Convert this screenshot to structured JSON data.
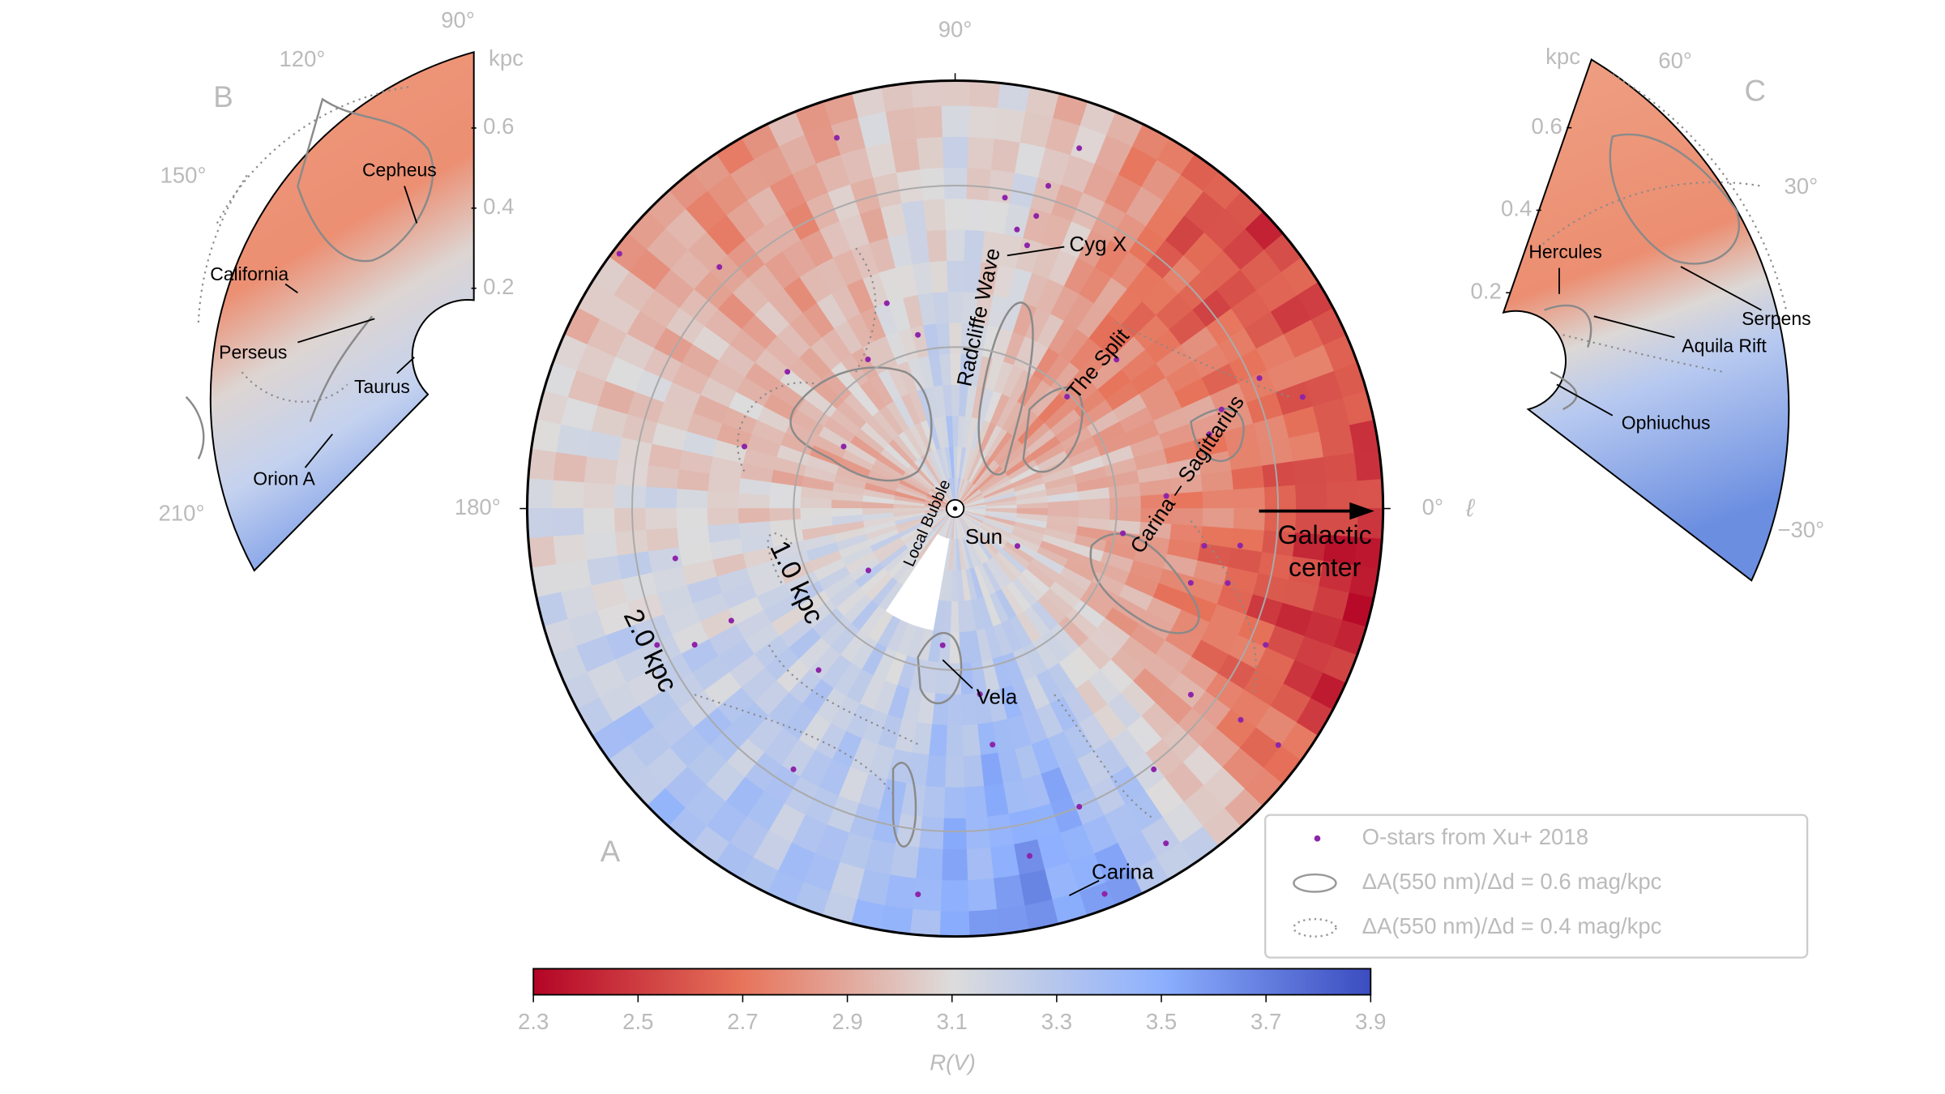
{
  "chart_data": {
    "type": "polar_scatter",
    "panel_label": "A",
    "theta_label": "ℓ",
    "thetaticks": [
      {
        "value": 90,
        "label": "90°"
      },
      {
        "value": 180,
        "label": "180°"
      },
      {
        "value": 0,
        "label": "0°"
      }
    ],
    "rlim": [
      0,
      2.65
    ],
    "rticks": [
      {
        "value": 1,
        "label": "1.0 kpc"
      },
      {
        "value": 2,
        "label": "2.0 kpc"
      }
    ],
    "legend": "lower right",
    "series": [
      {
        "name": "O-stars from Xu+ 2018",
        "color": "#8e24aa",
        "x": [
          77.5,
          80.9,
          74.5,
          73.9,
          74.7,
          107.7,
          134.3,
          120.3,
          102.1,
          140.8,
          163.6,
          190.1,
          206.6,
          207.6,
          229.8,
          215.5,
          264.8,
          279.0,
          264.5,
          282.1,
          292.6,
          307.3,
          302.2,
          291.2,
          323.5,
          336.3,
          344.7,
          342.5,
          352.6,
          16.3,
          23.2,
          17.8,
          3.4,
          351.6,
          329.0,
          45.0,
          71.0,
          108.4,
          142.8,
          204.6,
          323.8,
          321.7,
          238.2,
          277.6,
          351.5,
          20.4,
          150.9,
          42.7
        ],
        "values": [
          1.77,
          1.95,
          1.88,
          2.08,
          1.69,
          2.41,
          2.09,
          1.07,
          1.1,
          1.34,
          1.36,
          1.76,
          1.55,
          1.82,
          1.31,
          0.66,
          0.85,
          1.48,
          2.4,
          2.2,
          2.0,
          2.03,
          2.45,
          2.56,
          2.2,
          2.1,
          1.75,
          1.53,
          1.78,
          1.64,
          2.05,
          2.26,
          1.31,
          1.05,
          0.45,
          0.98,
          2.36,
          1.34,
          2.61,
          2.03,
          2.48,
          1.86,
          1.9,
          1.16,
          1.56,
          1.76,
          0.79,
          1.36
        ]
      }
    ],
    "contours": [
      {
        "name": "ΔA(550 nm)/Δd = 0.6 mag/kpc",
        "style": "solid"
      },
      {
        "name": "ΔA(550 nm)/Δd = 0.4 mag/kpc",
        "style": "dotted"
      }
    ],
    "annotations": {
      "cyg_x": "Cyg X",
      "radcliffe": "Radcliffe Wave",
      "split": "The Split",
      "carina_sgr": "Carina – Sagittarius",
      "local_bubble": "Local Bubble",
      "sun": "Sun",
      "galactic_center": [
        "Galactic",
        "center"
      ],
      "vela": "Vela",
      "carina": "Carina"
    },
    "colorbar": {
      "label": "R(V)",
      "lim": [
        2.3,
        3.9
      ],
      "ticks": [
        2.3,
        2.5,
        2.7,
        2.9,
        3.1,
        3.3,
        3.5,
        3.7,
        3.9
      ],
      "colormap": "coolwarm_r"
    },
    "insets": [
      {
        "panel_label": "B",
        "r_label": "kpc",
        "rticks": [
          0.2,
          0.4,
          0.6
        ],
        "thetaticks": [
          {
            "value": 90,
            "label": "90°"
          },
          {
            "value": 120,
            "label": "120°"
          },
          {
            "value": 150,
            "label": "150°"
          },
          {
            "value": 210,
            "label": "210°"
          }
        ],
        "annotations": [
          "Cepheus",
          "California",
          "Perseus",
          "Taurus",
          "Orion A"
        ]
      },
      {
        "panel_label": "C",
        "r_label": "kpc",
        "rticks": [
          0.2,
          0.4,
          0.6
        ],
        "thetaticks": [
          {
            "value": 60,
            "label": "60°"
          },
          {
            "value": 30,
            "label": "30°"
          },
          {
            "value": -30,
            "label": "−30°"
          }
        ],
        "annotations": [
          "Hercules",
          "Serpens",
          "Aquila Rift",
          "Ophiuchus"
        ]
      }
    ]
  }
}
